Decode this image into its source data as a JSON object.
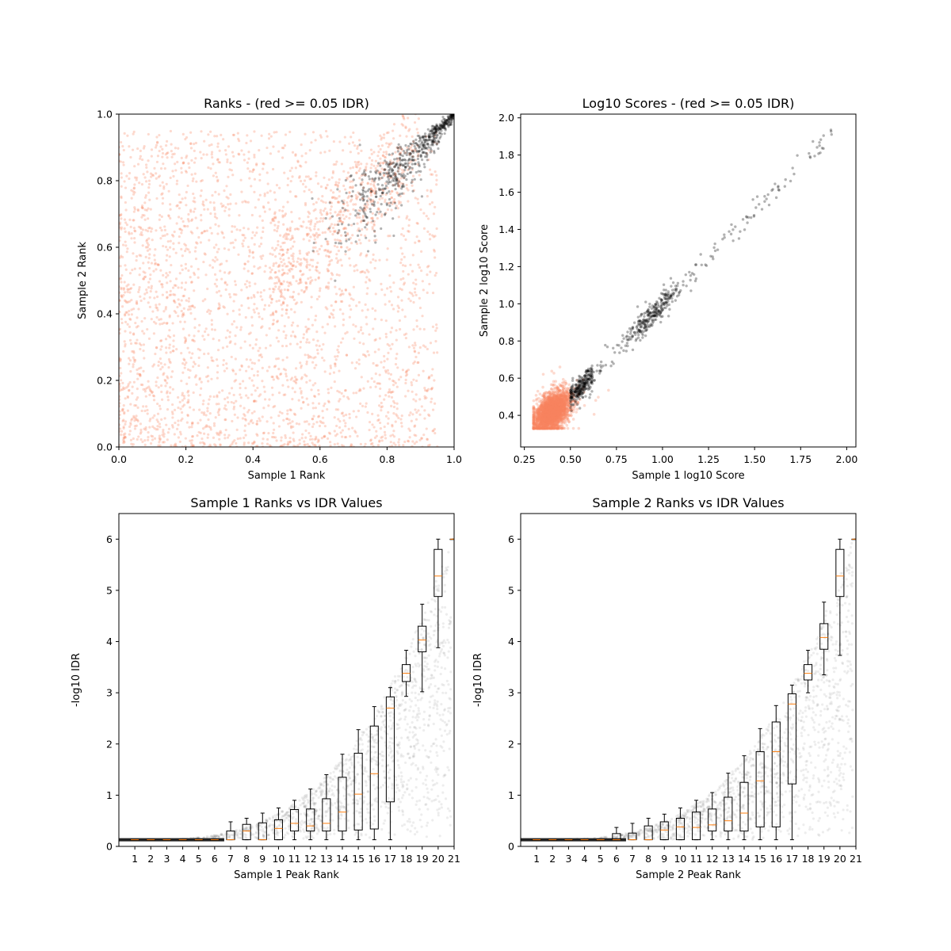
{
  "chart_data": [
    {
      "id": "ranks",
      "type": "scatter",
      "title": "Ranks - (red >= 0.05 IDR)",
      "xlabel": "Sample 1 Rank",
      "ylabel": "Sample 2 Rank",
      "xlim": [
        0,
        1
      ],
      "ylim": [
        0,
        1
      ],
      "xticks": [
        "0.0",
        "0.2",
        "0.4",
        "0.6",
        "0.8",
        "1.0"
      ],
      "yticks": [
        "0.0",
        "0.2",
        "0.4",
        "0.6",
        "0.8",
        "1.0"
      ],
      "series": [
        {
          "color": "#fa8460",
          "alpha": 0.3,
          "x_range": [
            0,
            1
          ],
          "y_range": [
            0,
            1
          ],
          "count": 3200,
          "note_shape": "scattered uniform, denser toward origin"
        },
        {
          "color": "#000000",
          "alpha": 0.3,
          "x_range": [
            0.64,
            1
          ],
          "y_range": [
            0.64,
            1
          ],
          "count": 600,
          "note_shape": "diagonal band"
        }
      ]
    },
    {
      "id": "scores",
      "type": "scatter",
      "title": "Log10 Scores - (red >= 0.05 IDR)",
      "xlabel": "Sample 1 log10 Score",
      "ylabel": "Sample 2 log10 Score",
      "xlim": [
        0.23,
        2.05
      ],
      "ylim": [
        0.23,
        2.02
      ],
      "xticks": [
        "0.25",
        "0.50",
        "0.75",
        "1.00",
        "1.25",
        "1.50",
        "1.75",
        "2.00"
      ],
      "yticks": [
        "0.4",
        "0.6",
        "0.8",
        "1.0",
        "1.2",
        "1.4",
        "1.6",
        "1.8",
        "2.0"
      ],
      "series": [
        {
          "color": "#fa8460",
          "alpha": 0.3,
          "center": [
            0.4,
            0.42
          ],
          "count": 2800
        },
        {
          "color": "#000000",
          "alpha": 0.3,
          "x_range": [
            0.48,
            1.93
          ],
          "count": 650
        }
      ]
    },
    {
      "id": "s1-box",
      "type": "box",
      "title": "Sample 1 Ranks vs IDR Values",
      "xlabel": "Sample 1 Peak Rank",
      "ylabel": "-log10 IDR",
      "xlim": [
        0,
        21
      ],
      "ylim": [
        0,
        6.5
      ],
      "xticks": [
        "1",
        "2",
        "3",
        "4",
        "5",
        "6",
        "7",
        "8",
        "9",
        "10",
        "11",
        "12",
        "13",
        "14",
        "15",
        "16",
        "17",
        "18",
        "19",
        "20",
        "21"
      ],
      "yticks": [
        "0",
        "1",
        "2",
        "3",
        "4",
        "5",
        "6"
      ],
      "boxes": [
        {
          "pos": 1,
          "q1": 0.13,
          "med": 0.13,
          "q3": 0.13,
          "wl": 0.13,
          "wh": 0.13
        },
        {
          "pos": 2,
          "q1": 0.13,
          "med": 0.13,
          "q3": 0.13,
          "wl": 0.13,
          "wh": 0.13
        },
        {
          "pos": 3,
          "q1": 0.13,
          "med": 0.13,
          "q3": 0.13,
          "wl": 0.13,
          "wh": 0.13
        },
        {
          "pos": 4,
          "q1": 0.13,
          "med": 0.13,
          "q3": 0.13,
          "wl": 0.13,
          "wh": 0.13
        },
        {
          "pos": 5,
          "q1": 0.13,
          "med": 0.13,
          "q3": 0.13,
          "wl": 0.13,
          "wh": 0.13
        },
        {
          "pos": 6,
          "q1": 0.13,
          "med": 0.13,
          "q3": 0.13,
          "wl": 0.13,
          "wh": 0.13
        },
        {
          "pos": 7,
          "q1": 0.13,
          "med": 0.13,
          "q3": 0.3,
          "wl": 0.13,
          "wh": 0.48
        },
        {
          "pos": 8,
          "q1": 0.13,
          "med": 0.3,
          "q3": 0.43,
          "wl": 0.13,
          "wh": 0.55
        },
        {
          "pos": 9,
          "q1": 0.13,
          "med": 0.13,
          "q3": 0.46,
          "wl": 0.13,
          "wh": 0.65
        },
        {
          "pos": 10,
          "q1": 0.13,
          "med": 0.35,
          "q3": 0.52,
          "wl": 0.13,
          "wh": 0.75
        },
        {
          "pos": 11,
          "q1": 0.3,
          "med": 0.45,
          "q3": 0.72,
          "wl": 0.13,
          "wh": 0.9
        },
        {
          "pos": 12,
          "q1": 0.3,
          "med": 0.4,
          "q3": 0.73,
          "wl": 0.13,
          "wh": 1.12
        },
        {
          "pos": 13,
          "q1": 0.3,
          "med": 0.45,
          "q3": 0.93,
          "wl": 0.13,
          "wh": 1.4
        },
        {
          "pos": 14,
          "q1": 0.3,
          "med": 0.67,
          "q3": 1.35,
          "wl": 0.13,
          "wh": 1.8
        },
        {
          "pos": 15,
          "q1": 0.32,
          "med": 1.02,
          "q3": 1.82,
          "wl": 0.13,
          "wh": 2.28
        },
        {
          "pos": 16,
          "q1": 0.34,
          "med": 1.42,
          "q3": 2.35,
          "wl": 0.13,
          "wh": 2.73
        },
        {
          "pos": 17,
          "q1": 0.87,
          "med": 2.7,
          "q3": 2.92,
          "wl": 0.13,
          "wh": 3.1
        },
        {
          "pos": 18,
          "q1": 3.22,
          "med": 3.38,
          "q3": 3.55,
          "wl": 2.93,
          "wh": 3.83
        },
        {
          "pos": 19,
          "q1": 3.8,
          "med": 4.03,
          "q3": 4.3,
          "wl": 3.02,
          "wh": 4.73
        },
        {
          "pos": 20,
          "q1": 4.88,
          "med": 5.28,
          "q3": 5.8,
          "wl": 3.88,
          "wh": 6.0
        },
        {
          "pos": 21,
          "q1": 6.0,
          "med": 6.0,
          "q3": 6.0,
          "wl": 6.0,
          "wh": 6.0
        }
      ]
    },
    {
      "id": "s2-box",
      "type": "box",
      "title": "Sample 2 Ranks vs IDR Values",
      "xlabel": "Sample 2 Peak Rank",
      "ylabel": "-log10 IDR",
      "xlim": [
        0,
        21
      ],
      "ylim": [
        0,
        6.5
      ],
      "xticks": [
        "1",
        "2",
        "3",
        "4",
        "5",
        "6",
        "7",
        "8",
        "9",
        "10",
        "11",
        "12",
        "13",
        "14",
        "15",
        "16",
        "17",
        "18",
        "19",
        "20",
        "21"
      ],
      "yticks": [
        "0",
        "1",
        "2",
        "3",
        "4",
        "5",
        "6"
      ],
      "boxes": [
        {
          "pos": 1,
          "q1": 0.13,
          "med": 0.13,
          "q3": 0.13,
          "wl": 0.13,
          "wh": 0.13
        },
        {
          "pos": 2,
          "q1": 0.13,
          "med": 0.13,
          "q3": 0.13,
          "wl": 0.13,
          "wh": 0.13
        },
        {
          "pos": 3,
          "q1": 0.13,
          "med": 0.13,
          "q3": 0.13,
          "wl": 0.13,
          "wh": 0.13
        },
        {
          "pos": 4,
          "q1": 0.13,
          "med": 0.13,
          "q3": 0.13,
          "wl": 0.13,
          "wh": 0.13
        },
        {
          "pos": 5,
          "q1": 0.13,
          "med": 0.13,
          "q3": 0.13,
          "wl": 0.13,
          "wh": 0.13
        },
        {
          "pos": 6,
          "q1": 0.13,
          "med": 0.13,
          "q3": 0.25,
          "wl": 0.13,
          "wh": 0.37
        },
        {
          "pos": 7,
          "q1": 0.13,
          "med": 0.13,
          "q3": 0.26,
          "wl": 0.13,
          "wh": 0.45
        },
        {
          "pos": 8,
          "q1": 0.13,
          "med": 0.13,
          "q3": 0.4,
          "wl": 0.13,
          "wh": 0.55
        },
        {
          "pos": 9,
          "q1": 0.13,
          "med": 0.32,
          "q3": 0.48,
          "wl": 0.13,
          "wh": 0.63
        },
        {
          "pos": 10,
          "q1": 0.13,
          "med": 0.38,
          "q3": 0.55,
          "wl": 0.13,
          "wh": 0.75
        },
        {
          "pos": 11,
          "q1": 0.13,
          "med": 0.37,
          "q3": 0.67,
          "wl": 0.13,
          "wh": 0.9
        },
        {
          "pos": 12,
          "q1": 0.3,
          "med": 0.42,
          "q3": 0.73,
          "wl": 0.13,
          "wh": 1.05
        },
        {
          "pos": 13,
          "q1": 0.3,
          "med": 0.5,
          "q3": 0.96,
          "wl": 0.13,
          "wh": 1.43
        },
        {
          "pos": 14,
          "q1": 0.3,
          "med": 0.65,
          "q3": 1.25,
          "wl": 0.13,
          "wh": 1.77
        },
        {
          "pos": 15,
          "q1": 0.38,
          "med": 1.28,
          "q3": 1.85,
          "wl": 0.13,
          "wh": 2.3
        },
        {
          "pos": 16,
          "q1": 0.38,
          "med": 1.85,
          "q3": 2.43,
          "wl": 0.13,
          "wh": 2.75
        },
        {
          "pos": 17,
          "q1": 1.22,
          "med": 2.78,
          "q3": 2.98,
          "wl": 0.13,
          "wh": 3.15
        },
        {
          "pos": 18,
          "q1": 3.25,
          "med": 3.38,
          "q3": 3.55,
          "wl": 3.0,
          "wh": 3.83
        },
        {
          "pos": 19,
          "q1": 3.85,
          "med": 4.08,
          "q3": 4.35,
          "wl": 3.35,
          "wh": 4.77
        },
        {
          "pos": 20,
          "q1": 4.88,
          "med": 5.28,
          "q3": 5.8,
          "wl": 3.73,
          "wh": 6.0
        },
        {
          "pos": 21,
          "q1": 6.0,
          "med": 6.0,
          "q3": 6.0,
          "wl": 6.0,
          "wh": 6.0
        }
      ]
    }
  ],
  "colors": {
    "low_idr_points": "#fa8460",
    "high_idr_points": "#000000",
    "median_line": "#ff7f0e",
    "box_edge": "#000000"
  }
}
